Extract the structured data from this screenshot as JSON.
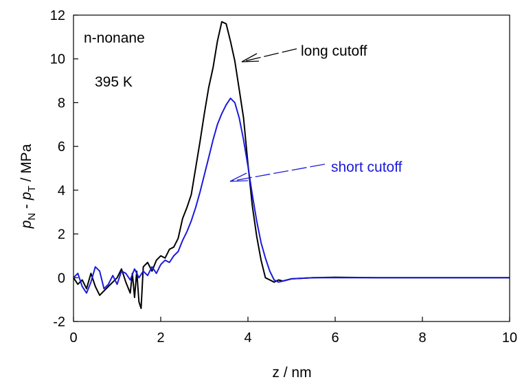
{
  "chart_data": {
    "type": "line",
    "xlabel": "z / nm",
    "ylabel_parts": {
      "p1": "p",
      "sub1": "N",
      "mid": " - ",
      "p2": "p",
      "sub2": "T",
      "unit": " / MPa"
    },
    "xlim": [
      0,
      10
    ],
    "ylim": [
      -2,
      12
    ],
    "x_ticks": [
      "0",
      "2",
      "4",
      "6",
      "8",
      "10"
    ],
    "y_ticks": [
      "-2",
      "0",
      "2",
      "4",
      "6",
      "8",
      "10",
      "12"
    ],
    "grid": false,
    "annotations": {
      "substance": "n-nonane",
      "temperature": "395 K",
      "long_label": "long cutoff",
      "short_label": "short cutoff"
    },
    "colors": {
      "long": "#000000",
      "short": "#1a1adb"
    },
    "series": [
      {
        "name": "long cutoff",
        "x": [
          0.0,
          0.1,
          0.2,
          0.3,
          0.4,
          0.5,
          0.6,
          0.7,
          0.8,
          0.9,
          1.0,
          1.1,
          1.2,
          1.3,
          1.35,
          1.4,
          1.45,
          1.5,
          1.55,
          1.6,
          1.7,
          1.8,
          1.9,
          2.0,
          2.1,
          2.2,
          2.3,
          2.4,
          2.5,
          2.6,
          2.7,
          2.8,
          2.9,
          3.0,
          3.1,
          3.2,
          3.3,
          3.4,
          3.5,
          3.6,
          3.7,
          3.8,
          3.9,
          4.0,
          4.1,
          4.2,
          4.3,
          4.4,
          4.5,
          4.6,
          4.7,
          4.8,
          5.0,
          5.5,
          6.0,
          7.0,
          8.0,
          9.0,
          10.0
        ],
        "y": [
          0.0,
          -0.3,
          -0.1,
          -0.5,
          0.2,
          -0.4,
          -0.8,
          -0.6,
          -0.4,
          -0.2,
          0.0,
          0.4,
          -0.2,
          -0.7,
          0.2,
          -0.9,
          0.3,
          -1.1,
          -1.4,
          0.5,
          0.7,
          0.3,
          0.8,
          1.0,
          0.9,
          1.3,
          1.4,
          1.8,
          2.7,
          3.2,
          3.8,
          5.0,
          6.2,
          7.5,
          8.7,
          9.6,
          10.8,
          11.7,
          11.6,
          10.8,
          9.9,
          8.6,
          7.3,
          5.2,
          3.3,
          1.9,
          0.8,
          0.0,
          -0.1,
          -0.2,
          -0.1,
          -0.15,
          -0.05,
          0.0,
          0.02,
          0.0,
          0.0,
          0.0,
          0.0
        ]
      },
      {
        "name": "short cutoff",
        "x": [
          0.0,
          0.1,
          0.2,
          0.3,
          0.4,
          0.5,
          0.6,
          0.7,
          0.8,
          0.9,
          1.0,
          1.1,
          1.2,
          1.3,
          1.4,
          1.5,
          1.6,
          1.7,
          1.8,
          1.9,
          2.0,
          2.1,
          2.2,
          2.3,
          2.4,
          2.5,
          2.6,
          2.7,
          2.8,
          2.9,
          3.0,
          3.1,
          3.2,
          3.3,
          3.4,
          3.5,
          3.6,
          3.7,
          3.8,
          3.9,
          4.0,
          4.1,
          4.2,
          4.3,
          4.4,
          4.5,
          4.6,
          4.7,
          4.8,
          5.0,
          5.5,
          6.0,
          7.0,
          8.0,
          9.0,
          10.0
        ],
        "y": [
          0.0,
          0.2,
          -0.4,
          -0.7,
          -0.2,
          0.5,
          0.3,
          -0.5,
          -0.3,
          0.1,
          -0.3,
          0.3,
          0.2,
          -0.1,
          0.4,
          0.0,
          0.3,
          0.1,
          0.5,
          0.2,
          0.6,
          0.8,
          0.7,
          1.0,
          1.2,
          1.7,
          2.1,
          2.6,
          3.2,
          3.9,
          4.7,
          5.5,
          6.3,
          7.0,
          7.5,
          7.9,
          8.2,
          8.0,
          7.3,
          6.3,
          5.1,
          3.8,
          2.6,
          1.6,
          0.9,
          0.3,
          -0.1,
          -0.2,
          -0.15,
          -0.05,
          0.0,
          0.0,
          0.0,
          0.0,
          0.0,
          0.0
        ]
      }
    ]
  }
}
